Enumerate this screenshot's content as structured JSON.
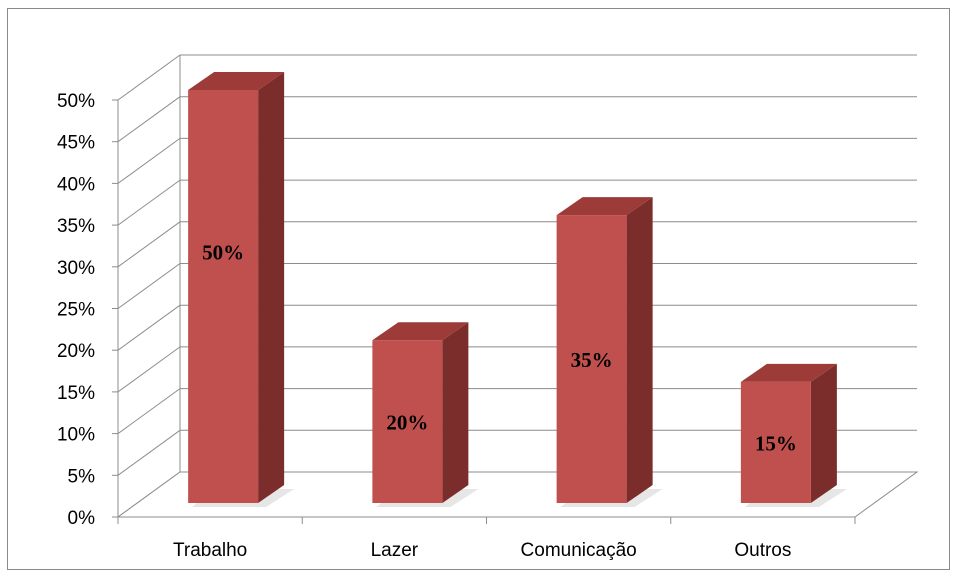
{
  "chart_data": {
    "type": "bar",
    "categories": [
      "Trabalho",
      "Lazer",
      "Comunicação",
      "Outros"
    ],
    "values": [
      50,
      20,
      35,
      15
    ],
    "data_labels": [
      "50%",
      "20%",
      "35%",
      "15%"
    ],
    "y_tick_labels": [
      "0%",
      "5%",
      "10%",
      "15%",
      "20%",
      "25%",
      "30%",
      "35%",
      "40%",
      "45%",
      "50%"
    ],
    "ylim": [
      0,
      50
    ],
    "y_unit": "%",
    "grid": true,
    "style": "3d-column",
    "title": "",
    "xlabel": "",
    "ylabel": ""
  },
  "colors": {
    "bar_front": "#c0504d",
    "bar_side": "#7a2d2b",
    "bar_top": "#9c3b38",
    "grid": "#8c8c8c",
    "axis": "#8c8c8c",
    "frame": "#8a8a8a"
  }
}
